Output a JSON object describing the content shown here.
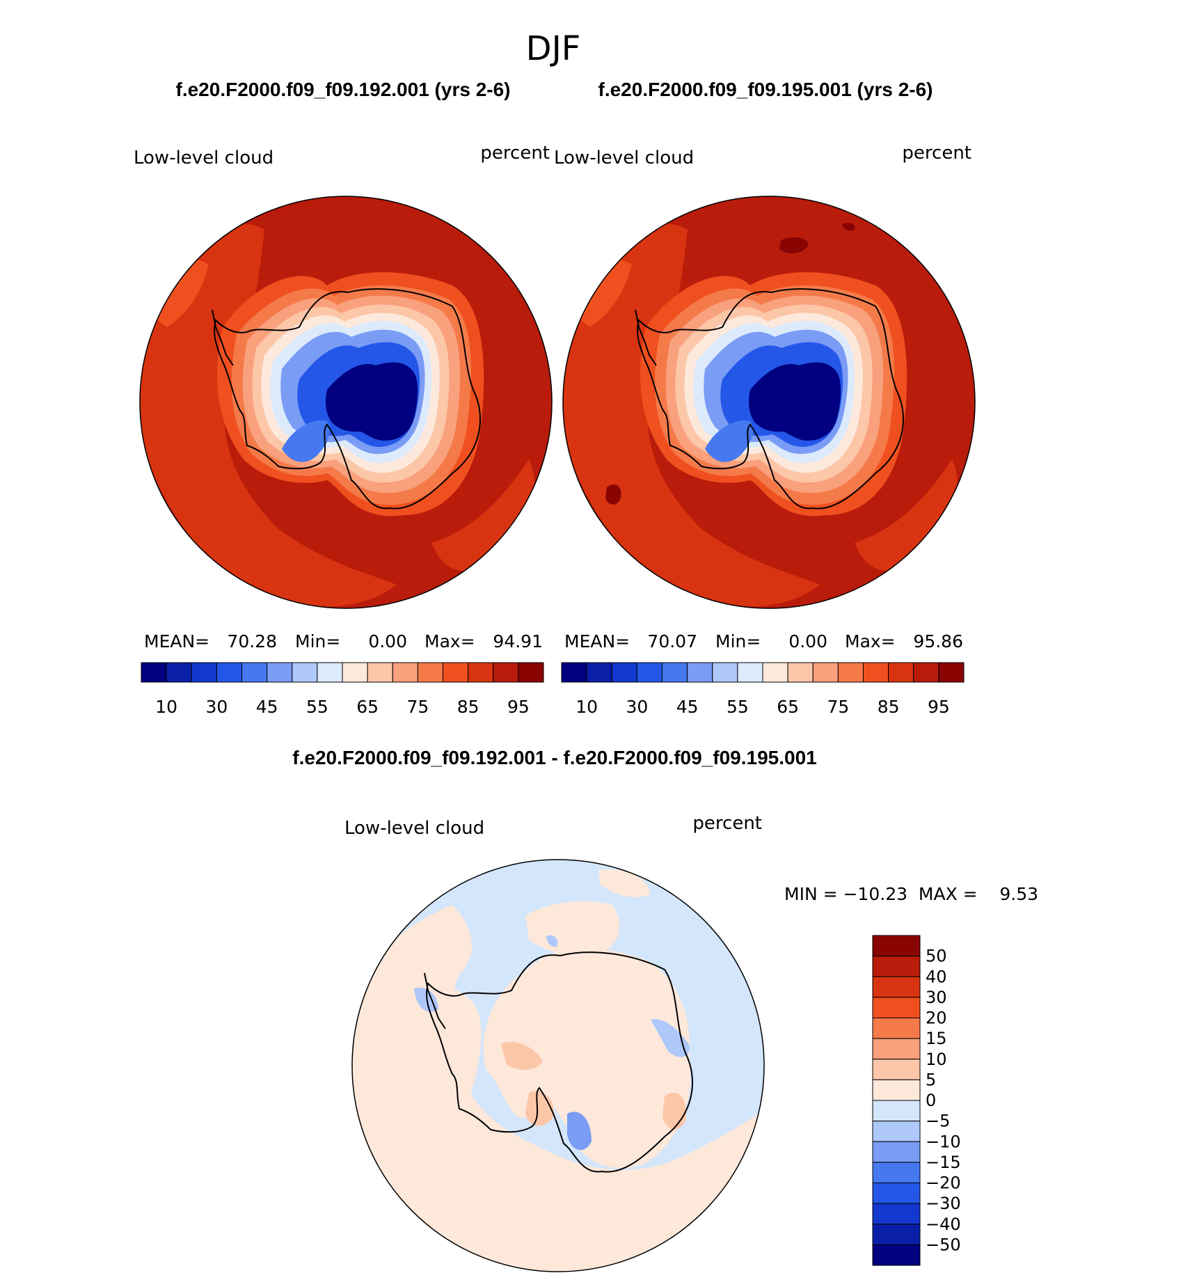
{
  "figure_title": "DJF",
  "panels": [
    {
      "case_title": "f.e20.F2000.f09_f09.192.001 (yrs 2-6)",
      "variable": "Low-level cloud",
      "units": "percent",
      "stats": {
        "mean_label": "MEAN=",
        "mean": "70.28",
        "min_label": "Min=",
        "min": "0.00",
        "max_label": "Max=",
        "max": "94.91"
      }
    },
    {
      "case_title": "f.e20.F2000.f09_f09.195.001 (yrs 2-6)",
      "variable": "Low-level cloud",
      "units": "percent",
      "stats": {
        "mean_label": "MEAN=",
        "mean": "70.07",
        "min_label": "Min=",
        "min": "0.00",
        "max_label": "Max=",
        "max": "95.86"
      }
    }
  ],
  "diff_panel": {
    "title": "f.e20.F2000.f09_f09.192.001 - f.e20.F2000.f09_f09.195.001",
    "variable": "Low-level cloud",
    "units": "percent",
    "range_text": "MIN = −10.23  MAX =    9.53"
  },
  "field_colorbar": {
    "colors": [
      "#000080",
      "#0a1fa8",
      "#1238d0",
      "#2457e8",
      "#4678f0",
      "#7a9cf5",
      "#aec8fa",
      "#dceafc",
      "#fde9dc",
      "#fcc6a8",
      "#f9a07c",
      "#f57a4a",
      "#f0501f",
      "#d93411",
      "#b91c0b",
      "#8a0404"
    ],
    "tick_labels": [
      "10",
      "30",
      "45",
      "55",
      "65",
      "75",
      "85",
      "95"
    ]
  },
  "diff_colorbar": {
    "colors": [
      "#000080",
      "#0a1fa8",
      "#1238d0",
      "#2457e8",
      "#4678f0",
      "#7a9cf5",
      "#aec8fa",
      "#d3e6fb",
      "#fde8da",
      "#fcc6a8",
      "#f9a07c",
      "#f57a4a",
      "#f0501f",
      "#d93411",
      "#b91c0b",
      "#8a0404"
    ],
    "tick_labels": [
      "50",
      "40",
      "30",
      "20",
      "15",
      "10",
      "5",
      "0",
      "−5",
      "−10",
      "−15",
      "−20",
      "−30",
      "−40",
      "−50"
    ]
  }
}
